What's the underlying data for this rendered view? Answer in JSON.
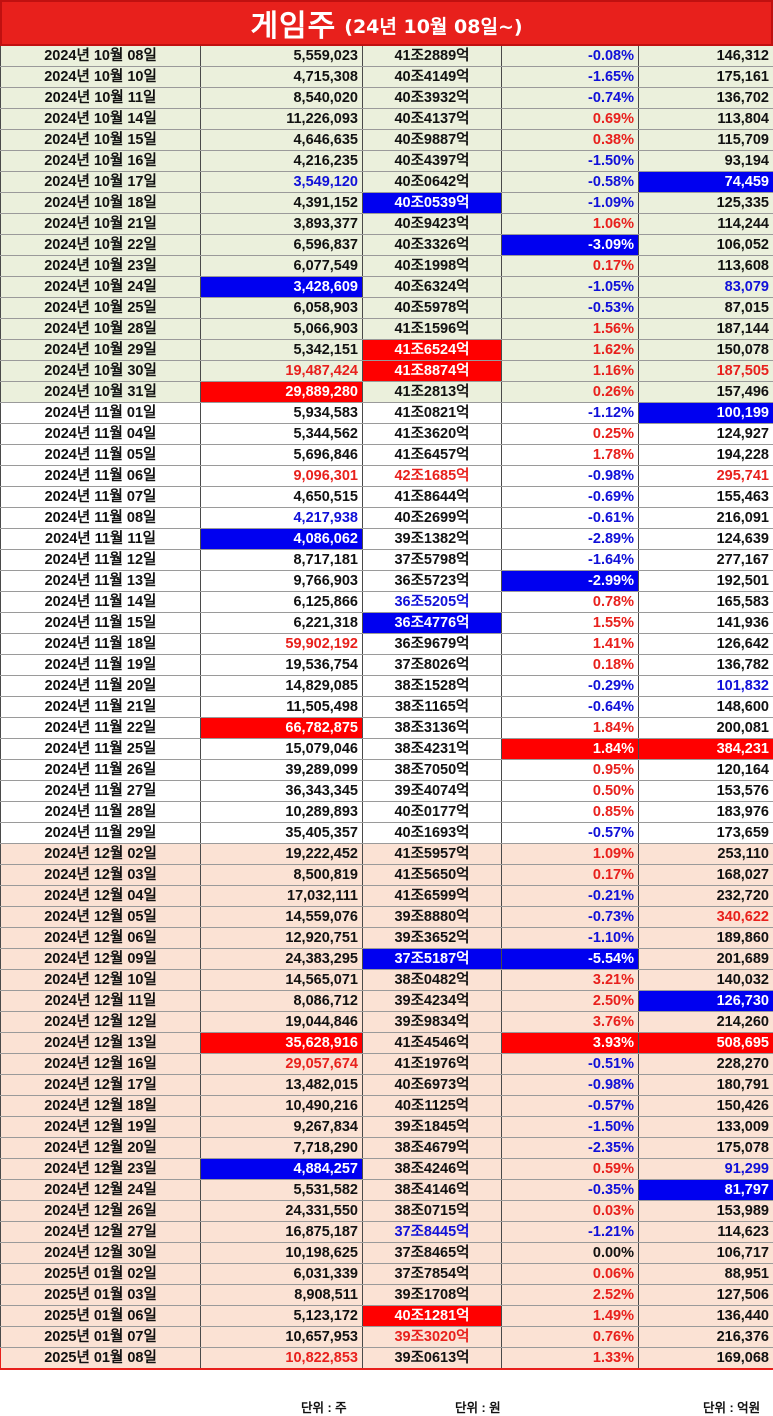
{
  "title": {
    "main": "게임주",
    "sub": "(24년 10월 08일~)"
  },
  "units": {
    "volume": "단위 : 주",
    "cap": "단위 : 원",
    "value": "단위 : 억원"
  },
  "rows": [
    {
      "date": "2024년 10월 08일",
      "volume": "5,559,023",
      "cap": "41조2889억",
      "rate": "-0.08%",
      "value": "146,312",
      "bg": "g",
      "vs": "",
      "cs": "",
      "rs": "blue",
      "ws": ""
    },
    {
      "date": "2024년 10월 10일",
      "volume": "4,715,308",
      "cap": "40조4149억",
      "rate": "-1.65%",
      "value": "175,161",
      "bg": "g",
      "vs": "",
      "cs": "",
      "rs": "blue",
      "ws": ""
    },
    {
      "date": "2024년 10월 11일",
      "volume": "8,540,020",
      "cap": "40조3932억",
      "rate": "-0.74%",
      "value": "136,702",
      "bg": "g",
      "vs": "",
      "cs": "",
      "rs": "blue",
      "ws": ""
    },
    {
      "date": "2024년 10월 14일",
      "volume": "11,226,093",
      "cap": "40조4137억",
      "rate": "0.69%",
      "value": "113,804",
      "bg": "g",
      "vs": "",
      "cs": "",
      "rs": "red",
      "ws": ""
    },
    {
      "date": "2024년 10월 15일",
      "volume": "4,646,635",
      "cap": "40조9887억",
      "rate": "0.38%",
      "value": "115,709",
      "bg": "g",
      "vs": "",
      "cs": "",
      "rs": "red",
      "ws": ""
    },
    {
      "date": "2024년 10월 16일",
      "volume": "4,216,235",
      "cap": "40조4397억",
      "rate": "-1.50%",
      "value": "93,194",
      "bg": "g",
      "vs": "",
      "cs": "",
      "rs": "blue",
      "ws": ""
    },
    {
      "date": "2024년 10월 17일",
      "volume": "3,549,120",
      "cap": "40조0642억",
      "rate": "-0.58%",
      "value": "74,459",
      "bg": "g",
      "vs": "blue",
      "cs": "",
      "rs": "blue",
      "ws": "bgblue"
    },
    {
      "date": "2024년 10월 18일",
      "volume": "4,391,152",
      "cap": "40조0539억",
      "rate": "-1.09%",
      "value": "125,335",
      "bg": "g",
      "vs": "",
      "cs": "bgblue",
      "rs": "blue",
      "ws": ""
    },
    {
      "date": "2024년 10월 21일",
      "volume": "3,893,377",
      "cap": "40조9423억",
      "rate": "1.06%",
      "value": "114,244",
      "bg": "g",
      "vs": "",
      "cs": "",
      "rs": "red",
      "ws": ""
    },
    {
      "date": "2024년 10월 22일",
      "volume": "6,596,837",
      "cap": "40조3326억",
      "rate": "-3.09%",
      "value": "106,052",
      "bg": "g",
      "vs": "",
      "cs": "",
      "rs": "bgblue",
      "ws": ""
    },
    {
      "date": "2024년 10월 23일",
      "volume": "6,077,549",
      "cap": "40조1998억",
      "rate": "0.17%",
      "value": "113,608",
      "bg": "g",
      "vs": "",
      "cs": "",
      "rs": "red",
      "ws": ""
    },
    {
      "date": "2024년 10월 24일",
      "volume": "3,428,609",
      "cap": "40조6324억",
      "rate": "-1.05%",
      "value": "83,079",
      "bg": "g",
      "vs": "bgblue",
      "cs": "",
      "rs": "blue",
      "ws": "blue"
    },
    {
      "date": "2024년 10월 25일",
      "volume": "6,058,903",
      "cap": "40조5978억",
      "rate": "-0.53%",
      "value": "87,015",
      "bg": "g",
      "vs": "",
      "cs": "",
      "rs": "blue",
      "ws": ""
    },
    {
      "date": "2024년 10월 28일",
      "volume": "5,066,903",
      "cap": "41조1596억",
      "rate": "1.56%",
      "value": "187,144",
      "bg": "g",
      "vs": "",
      "cs": "",
      "rs": "red",
      "ws": ""
    },
    {
      "date": "2024년 10월 29일",
      "volume": "5,342,151",
      "cap": "41조6524억",
      "rate": "1.62%",
      "value": "150,078",
      "bg": "g",
      "vs": "",
      "cs": "bgred",
      "rs": "red",
      "ws": ""
    },
    {
      "date": "2024년 10월 30일",
      "volume": "19,487,424",
      "cap": "41조8874억",
      "rate": "1.16%",
      "value": "187,505",
      "bg": "g",
      "vs": "red",
      "cs": "bgred",
      "rs": "red",
      "ws": "red"
    },
    {
      "date": "2024년 10월 31일",
      "volume": "29,889,280",
      "cap": "41조2813억",
      "rate": "0.26%",
      "value": "157,496",
      "bg": "g",
      "vs": "bgred",
      "cs": "",
      "rs": "red",
      "ws": ""
    },
    {
      "date": "2024년 11월 01일",
      "volume": "5,934,583",
      "cap": "41조0821억",
      "rate": "-1.12%",
      "value": "100,199",
      "bg": "w",
      "vs": "",
      "cs": "",
      "rs": "blue",
      "ws": "bgblue"
    },
    {
      "date": "2024년 11월 04일",
      "volume": "5,344,562",
      "cap": "41조3620억",
      "rate": "0.25%",
      "value": "124,927",
      "bg": "w",
      "vs": "",
      "cs": "",
      "rs": "red",
      "ws": ""
    },
    {
      "date": "2024년 11월 05일",
      "volume": "5,696,846",
      "cap": "41조6457억",
      "rate": "1.78%",
      "value": "194,228",
      "bg": "w",
      "vs": "",
      "cs": "",
      "rs": "red",
      "ws": ""
    },
    {
      "date": "2024년 11월 06일",
      "volume": "9,096,301",
      "cap": "42조1685억",
      "rate": "-0.98%",
      "value": "295,741",
      "bg": "w",
      "vs": "red",
      "cs": "red",
      "rs": "blue",
      "ws": "red"
    },
    {
      "date": "2024년 11월 07일",
      "volume": "4,650,515",
      "cap": "41조8644억",
      "rate": "-0.69%",
      "value": "155,463",
      "bg": "w",
      "vs": "",
      "cs": "",
      "rs": "blue",
      "ws": ""
    },
    {
      "date": "2024년 11월 08일",
      "volume": "4,217,938",
      "cap": "40조2699억",
      "rate": "-0.61%",
      "value": "216,091",
      "bg": "w",
      "vs": "blue",
      "cs": "",
      "rs": "blue",
      "ws": ""
    },
    {
      "date": "2024년 11월 11일",
      "volume": "4,086,062",
      "cap": "39조1382억",
      "rate": "-2.89%",
      "value": "124,639",
      "bg": "w",
      "vs": "bgblue",
      "cs": "",
      "rs": "blue",
      "ws": ""
    },
    {
      "date": "2024년 11월 12일",
      "volume": "8,717,181",
      "cap": "37조5798억",
      "rate": "-1.64%",
      "value": "277,167",
      "bg": "w",
      "vs": "",
      "cs": "",
      "rs": "blue",
      "ws": ""
    },
    {
      "date": "2024년 11월 13일",
      "volume": "9,766,903",
      "cap": "36조5723억",
      "rate": "-2.99%",
      "value": "192,501",
      "bg": "w",
      "vs": "",
      "cs": "",
      "rs": "bgblue",
      "ws": ""
    },
    {
      "date": "2024년 11월 14일",
      "volume": "6,125,866",
      "cap": "36조5205억",
      "rate": "0.78%",
      "value": "165,583",
      "bg": "w",
      "vs": "",
      "cs": "blue",
      "rs": "red",
      "ws": ""
    },
    {
      "date": "2024년 11월 15일",
      "volume": "6,221,318",
      "cap": "36조4776억",
      "rate": "1.55%",
      "value": "141,936",
      "bg": "w",
      "vs": "",
      "cs": "bgblue",
      "rs": "red",
      "ws": ""
    },
    {
      "date": "2024년 11월 18일",
      "volume": "59,902,192",
      "cap": "36조9679억",
      "rate": "1.41%",
      "value": "126,642",
      "bg": "w",
      "vs": "red",
      "cs": "",
      "rs": "red",
      "ws": ""
    },
    {
      "date": "2024년 11월 19일",
      "volume": "19,536,754",
      "cap": "37조8026억",
      "rate": "0.18%",
      "value": "136,782",
      "bg": "w",
      "vs": "",
      "cs": "",
      "rs": "red",
      "ws": ""
    },
    {
      "date": "2024년 11월 20일",
      "volume": "14,829,085",
      "cap": "38조1528억",
      "rate": "-0.29%",
      "value": "101,832",
      "bg": "w",
      "vs": "",
      "cs": "",
      "rs": "blue",
      "ws": "blue"
    },
    {
      "date": "2024년 11월 21일",
      "volume": "11,505,498",
      "cap": "38조1165억",
      "rate": "-0.64%",
      "value": "148,600",
      "bg": "w",
      "vs": "",
      "cs": "",
      "rs": "blue",
      "ws": ""
    },
    {
      "date": "2024년 11월 22일",
      "volume": "66,782,875",
      "cap": "38조3136억",
      "rate": "1.84%",
      "value": "200,081",
      "bg": "w",
      "vs": "bgred",
      "cs": "",
      "rs": "red",
      "ws": ""
    },
    {
      "date": "2024년 11월 25일",
      "volume": "15,079,046",
      "cap": "38조4231억",
      "rate": "1.84%",
      "value": "384,231",
      "bg": "w",
      "vs": "",
      "cs": "",
      "rs": "bgred",
      "ws": "bgred"
    },
    {
      "date": "2024년 11월 26일",
      "volume": "39,289,099",
      "cap": "38조7050억",
      "rate": "0.95%",
      "value": "120,164",
      "bg": "w",
      "vs": "",
      "cs": "",
      "rs": "red",
      "ws": ""
    },
    {
      "date": "2024년 11월 27일",
      "volume": "36,343,345",
      "cap": "39조4074억",
      "rate": "0.50%",
      "value": "153,576",
      "bg": "w",
      "vs": "",
      "cs": "",
      "rs": "red",
      "ws": ""
    },
    {
      "date": "2024년 11월 28일",
      "volume": "10,289,893",
      "cap": "40조0177억",
      "rate": "0.85%",
      "value": "183,976",
      "bg": "w",
      "vs": "",
      "cs": "",
      "rs": "red",
      "ws": ""
    },
    {
      "date": "2024년 11월 29일",
      "volume": "35,405,357",
      "cap": "40조1693억",
      "rate": "-0.57%",
      "value": "173,659",
      "bg": "w",
      "vs": "",
      "cs": "",
      "rs": "blue",
      "ws": ""
    },
    {
      "date": "2024년 12월 02일",
      "volume": "19,222,452",
      "cap": "41조5957억",
      "rate": "1.09%",
      "value": "253,110",
      "bg": "p",
      "vs": "",
      "cs": "",
      "rs": "red",
      "ws": ""
    },
    {
      "date": "2024년 12월 03일",
      "volume": "8,500,819",
      "cap": "41조5650억",
      "rate": "0.17%",
      "value": "168,027",
      "bg": "p",
      "vs": "",
      "cs": "",
      "rs": "red",
      "ws": ""
    },
    {
      "date": "2024년 12월 04일",
      "volume": "17,032,111",
      "cap": "41조6599억",
      "rate": "-0.21%",
      "value": "232,720",
      "bg": "p",
      "vs": "",
      "cs": "",
      "rs": "blue",
      "ws": ""
    },
    {
      "date": "2024년 12월 05일",
      "volume": "14,559,076",
      "cap": "39조8880억",
      "rate": "-0.73%",
      "value": "340,622",
      "bg": "p",
      "vs": "",
      "cs": "",
      "rs": "blue",
      "ws": "red"
    },
    {
      "date": "2024년 12월 06일",
      "volume": "12,920,751",
      "cap": "39조3652억",
      "rate": "-1.10%",
      "value": "189,860",
      "bg": "p",
      "vs": "",
      "cs": "",
      "rs": "blue",
      "ws": ""
    },
    {
      "date": "2024년 12월 09일",
      "volume": "24,383,295",
      "cap": "37조5187억",
      "rate": "-5.54%",
      "value": "201,689",
      "bg": "p",
      "vs": "",
      "cs": "bgblue",
      "rs": "bgblue",
      "ws": ""
    },
    {
      "date": "2024년 12월 10일",
      "volume": "14,565,071",
      "cap": "38조0482억",
      "rate": "3.21%",
      "value": "140,032",
      "bg": "p",
      "vs": "",
      "cs": "",
      "rs": "red",
      "ws": ""
    },
    {
      "date": "2024년 12월 11일",
      "volume": "8,086,712",
      "cap": "39조4234억",
      "rate": "2.50%",
      "value": "126,730",
      "bg": "p",
      "vs": "",
      "cs": "",
      "rs": "red",
      "ws": "bgblue"
    },
    {
      "date": "2024년 12월 12일",
      "volume": "19,044,846",
      "cap": "39조9834억",
      "rate": "3.76%",
      "value": "214,260",
      "bg": "p",
      "vs": "",
      "cs": "",
      "rs": "red",
      "ws": ""
    },
    {
      "date": "2024년 12월 13일",
      "volume": "35,628,916",
      "cap": "41조4546억",
      "rate": "3.93%",
      "value": "508,695",
      "bg": "p",
      "vs": "bgred",
      "cs": "",
      "rs": "bgred",
      "ws": "bgred"
    },
    {
      "date": "2024년 12월 16일",
      "volume": "29,057,674",
      "cap": "41조1976억",
      "rate": "-0.51%",
      "value": "228,270",
      "bg": "p",
      "vs": "red",
      "cs": "",
      "rs": "blue",
      "ws": ""
    },
    {
      "date": "2024년 12월 17일",
      "volume": "13,482,015",
      "cap": "40조6973억",
      "rate": "-0.98%",
      "value": "180,791",
      "bg": "p",
      "vs": "",
      "cs": "",
      "rs": "blue",
      "ws": ""
    },
    {
      "date": "2024년 12월 18일",
      "volume": "10,490,216",
      "cap": "40조1125억",
      "rate": "-0.57%",
      "value": "150,426",
      "bg": "p",
      "vs": "",
      "cs": "",
      "rs": "blue",
      "ws": ""
    },
    {
      "date": "2024년 12월 19일",
      "volume": "9,267,834",
      "cap": "39조1845억",
      "rate": "-1.50%",
      "value": "133,009",
      "bg": "p",
      "vs": "",
      "cs": "",
      "rs": "blue",
      "ws": ""
    },
    {
      "date": "2024년 12월 20일",
      "volume": "7,718,290",
      "cap": "38조4679억",
      "rate": "-2.35%",
      "value": "175,078",
      "bg": "p",
      "vs": "",
      "cs": "",
      "rs": "blue",
      "ws": ""
    },
    {
      "date": "2024년 12월 23일",
      "volume": "4,884,257",
      "cap": "38조4246억",
      "rate": "0.59%",
      "value": "91,299",
      "bg": "p",
      "vs": "bgblue",
      "cs": "",
      "rs": "red",
      "ws": "blue"
    },
    {
      "date": "2024년 12월 24일",
      "volume": "5,531,582",
      "cap": "38조4146억",
      "rate": "-0.35%",
      "value": "81,797",
      "bg": "p",
      "vs": "",
      "cs": "",
      "rs": "blue",
      "ws": "bgblue"
    },
    {
      "date": "2024년 12월 26일",
      "volume": "24,331,550",
      "cap": "38조0715억",
      "rate": "0.03%",
      "value": "153,989",
      "bg": "p",
      "vs": "",
      "cs": "",
      "rs": "red",
      "ws": ""
    },
    {
      "date": "2024년 12월 27일",
      "volume": "16,875,187",
      "cap": "37조8445억",
      "rate": "-1.21%",
      "value": "114,623",
      "bg": "p",
      "vs": "",
      "cs": "blue",
      "rs": "blue",
      "ws": ""
    },
    {
      "date": "2024년 12월 30일",
      "volume": "10,198,625",
      "cap": "37조8465억",
      "rate": "0.00%",
      "value": "106,717",
      "bg": "p",
      "vs": "",
      "cs": "",
      "rs": "",
      "ws": ""
    },
    {
      "date": "2025년 01월 02일",
      "volume": "6,031,339",
      "cap": "37조7854억",
      "rate": "0.06%",
      "value": "88,951",
      "bg": "p",
      "vs": "",
      "cs": "",
      "rs": "red",
      "ws": ""
    },
    {
      "date": "2025년 01월 03일",
      "volume": "8,908,511",
      "cap": "39조1708억",
      "rate": "2.52%",
      "value": "127,506",
      "bg": "p",
      "vs": "",
      "cs": "",
      "rs": "red",
      "ws": ""
    },
    {
      "date": "2025년 01월 06일",
      "volume": "5,123,172",
      "cap": "40조1281억",
      "rate": "1.49%",
      "value": "136,440",
      "bg": "p",
      "vs": "",
      "cs": "bgred",
      "rs": "red",
      "ws": ""
    },
    {
      "date": "2025년 01월 07일",
      "volume": "10,657,953",
      "cap": "39조3020억",
      "rate": "0.76%",
      "value": "216,376",
      "bg": "p",
      "vs": "",
      "cs": "red",
      "rs": "red",
      "ws": ""
    },
    {
      "date": "2025년 01월 08일",
      "volume": "10,822,853",
      "cap": "39조0613억",
      "rate": "1.33%",
      "value": "169,068",
      "bg": "p",
      "vs": "red",
      "cs": "",
      "rs": "red",
      "ws": "",
      "last": true
    }
  ],
  "colors": {
    "title_bg": "#e8201c",
    "up": "#e8201c",
    "down": "#1010d8",
    "highlight_up": "#ff0000",
    "highlight_down": "#0000f0",
    "band_oct": "#ebf0dc",
    "band_nov": "#ffffff",
    "band_dec": "#fbe2d4"
  }
}
